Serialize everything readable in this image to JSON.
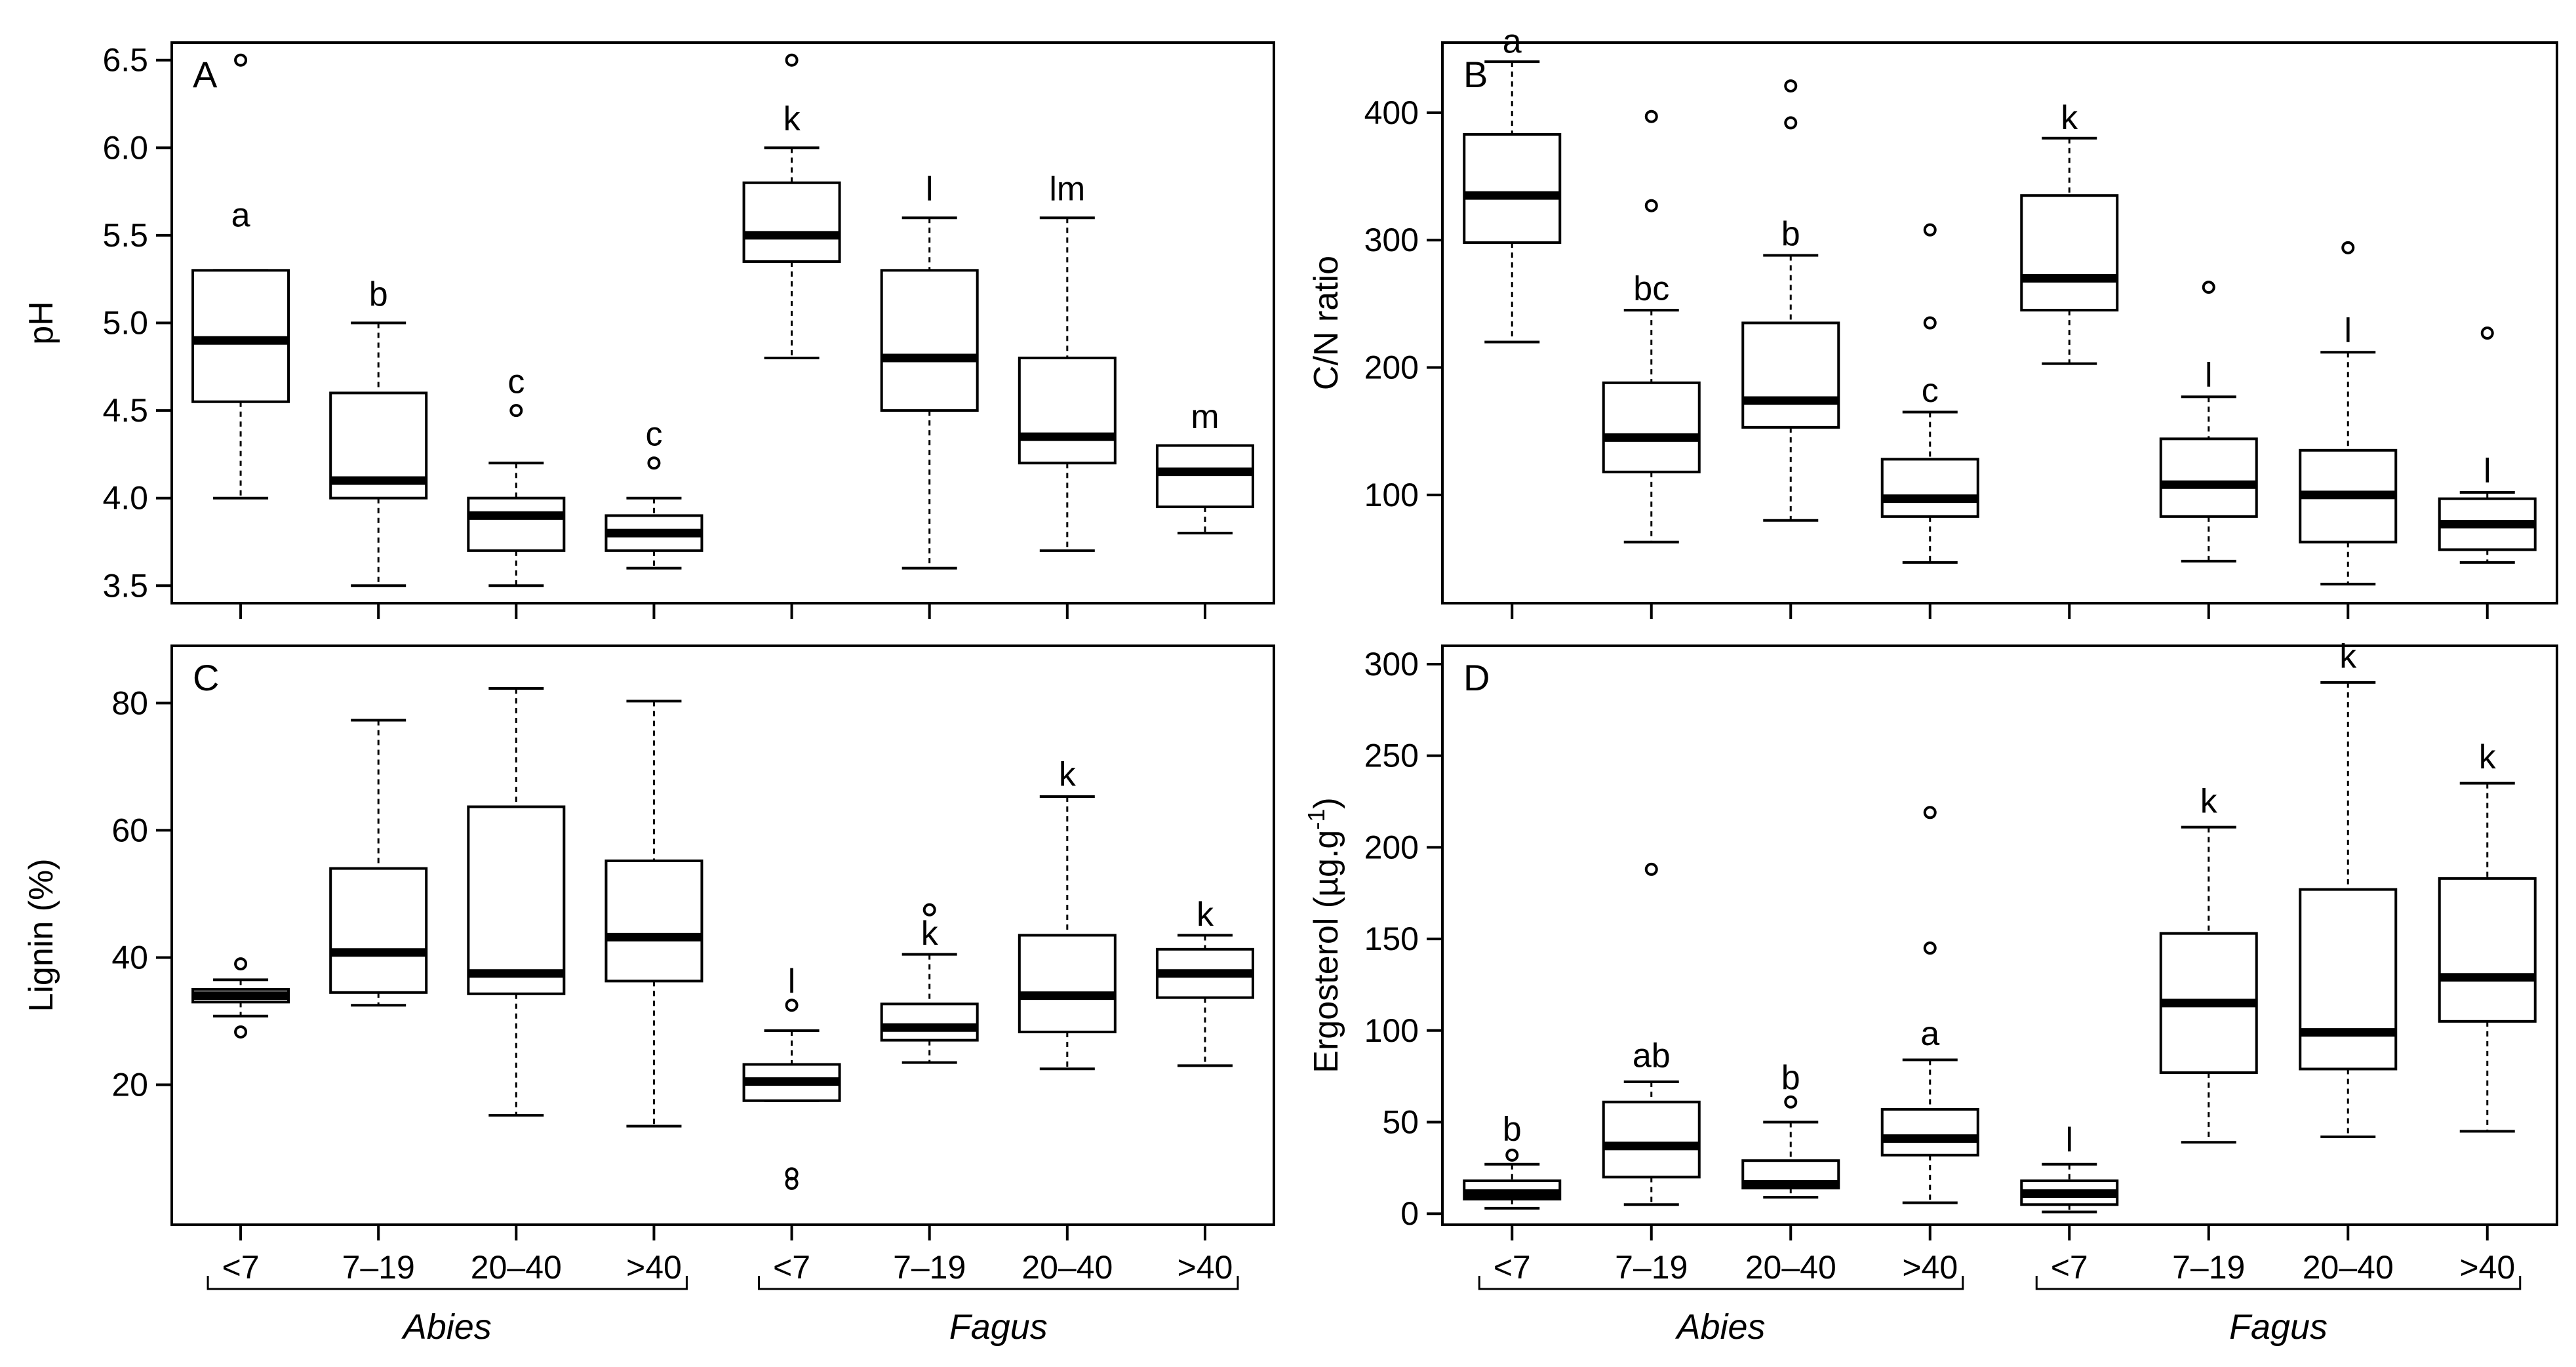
{
  "chart_data": [
    {
      "type": "boxplot",
      "panel": "A",
      "ylabel": "pH",
      "ylim": [
        3.4,
        6.6
      ],
      "yticks": [
        3.5,
        4.0,
        4.5,
        5.0,
        5.5,
        6.0,
        6.5
      ],
      "ytick_labels": [
        "3.5",
        "4.0",
        "4.5",
        "5.0",
        "5.5",
        "6.0",
        "6.5"
      ],
      "boxes": [
        {
          "category": "<7",
          "group": "Abies",
          "lw": 4.0,
          "q1": 4.55,
          "med": 4.9,
          "q3": 5.3,
          "uw": 5.3,
          "outliers": [
            6.5
          ],
          "letter": "a",
          "letter_y": 5.55
        },
        {
          "category": "7–19",
          "group": "Abies",
          "lw": 3.5,
          "q1": 4.0,
          "med": 4.1,
          "q3": 4.6,
          "uw": 5.0,
          "outliers": [],
          "letter": "b",
          "letter_y": 5.1
        },
        {
          "category": "20–40",
          "group": "Abies",
          "lw": 3.5,
          "q1": 3.7,
          "med": 3.9,
          "q3": 4.0,
          "uw": 4.2,
          "outliers": [
            4.5
          ],
          "letter": "c",
          "letter_y": 4.6
        },
        {
          "category": ">40",
          "group": "Abies",
          "lw": 3.6,
          "q1": 3.7,
          "med": 3.8,
          "q3": 3.9,
          "uw": 4.0,
          "outliers": [
            4.2
          ],
          "letter": "c",
          "letter_y": 4.3
        },
        {
          "category": "<7",
          "group": "Fagus",
          "lw": 4.8,
          "q1": 5.35,
          "med": 5.5,
          "q3": 5.8,
          "uw": 6.0,
          "outliers": [
            6.5
          ],
          "letter": "k",
          "letter_y": 6.1
        },
        {
          "category": "7–19",
          "group": "Fagus",
          "lw": 3.6,
          "q1": 4.5,
          "med": 4.8,
          "q3": 5.3,
          "uw": 5.6,
          "outliers": [],
          "letter": "l",
          "letter_y": 5.7
        },
        {
          "category": "20–40",
          "group": "Fagus",
          "lw": 3.7,
          "q1": 4.2,
          "med": 4.35,
          "q3": 4.8,
          "uw": 5.6,
          "outliers": [],
          "letter": "lm",
          "letter_y": 5.7
        },
        {
          "category": ">40",
          "group": "Fagus",
          "lw": 3.8,
          "q1": 3.95,
          "med": 4.15,
          "q3": 4.3,
          "uw": 4.3,
          "outliers": [],
          "letter": "m",
          "letter_y": 4.4
        }
      ]
    },
    {
      "type": "boxplot",
      "panel": "B",
      "ylabel": "C/N ratio",
      "ylim": [
        15,
        455
      ],
      "yticks": [
        100,
        200,
        300,
        400
      ],
      "ytick_labels": [
        "100",
        "200",
        "300",
        "400"
      ],
      "boxes": [
        {
          "category": "<7",
          "group": "Abies",
          "lw": 220,
          "q1": 298,
          "med": 335,
          "q3": 383,
          "uw": 440,
          "outliers": [],
          "letter": "a",
          "letter_y": 447
        },
        {
          "category": "7–19",
          "group": "Abies",
          "lw": 63,
          "q1": 118,
          "med": 145,
          "q3": 188,
          "uw": 245,
          "outliers": [
            327,
            397
          ],
          "letter": "bc",
          "letter_y": 253
        },
        {
          "category": "20–40",
          "group": "Abies",
          "lw": 80,
          "q1": 153,
          "med": 174,
          "q3": 235,
          "uw": 288,
          "outliers": [
            392,
            421
          ],
          "letter": "b",
          "letter_y": 296
        },
        {
          "category": ">40",
          "group": "Abies",
          "lw": 47,
          "q1": 83,
          "med": 97,
          "q3": 128,
          "uw": 165,
          "outliers": [
            235,
            308
          ],
          "letter": "c",
          "letter_y": 173
        },
        {
          "category": "<7",
          "group": "Fagus",
          "lw": 203,
          "q1": 245,
          "med": 270,
          "q3": 335,
          "uw": 380,
          "outliers": [],
          "letter": "k",
          "letter_y": 387
        },
        {
          "category": "7–19",
          "group": "Fagus",
          "lw": 48,
          "q1": 83,
          "med": 108,
          "q3": 144,
          "uw": 177,
          "outliers": [
            263
          ],
          "letter": "l",
          "letter_y": 185
        },
        {
          "category": "20–40",
          "group": "Fagus",
          "lw": 30,
          "q1": 63,
          "med": 100,
          "q3": 135,
          "uw": 212,
          "outliers": [
            294
          ],
          "letter": "l",
          "letter_y": 220
        },
        {
          "category": ">40",
          "group": "Fagus",
          "lw": 47,
          "q1": 57,
          "med": 77,
          "q3": 97,
          "uw": 102,
          "outliers": [
            227
          ],
          "letter": "l",
          "letter_y": 110
        }
      ]
    },
    {
      "type": "boxplot",
      "panel": "C",
      "ylabel": "Lignin (%)",
      "ylim": [
        -2,
        89
      ],
      "yticks": [
        20,
        40,
        60,
        80
      ],
      "ytick_labels": [
        "20",
        "40",
        "60",
        "80"
      ],
      "boxes": [
        {
          "category": "<7",
          "group": "Abies",
          "lw": 30.8,
          "q1": 33,
          "med": 34,
          "q3": 35,
          "uw": 36.5,
          "outliers": [
            28.3,
            39
          ],
          "letter": "",
          "letter_y": 0
        },
        {
          "category": "7–19",
          "group": "Abies",
          "lw": 32.5,
          "q1": 34.5,
          "med": 40.8,
          "q3": 54,
          "uw": 77.3,
          "outliers": [],
          "letter": "",
          "letter_y": 0
        },
        {
          "category": "20–40",
          "group": "Abies",
          "lw": 15.2,
          "q1": 34.3,
          "med": 37.5,
          "q3": 63.7,
          "uw": 82.3,
          "outliers": [],
          "letter": "",
          "letter_y": 0
        },
        {
          "category": ">40",
          "group": "Abies",
          "lw": 13.5,
          "q1": 36.3,
          "med": 43.2,
          "q3": 55.2,
          "uw": 80.3,
          "outliers": [],
          "letter": "",
          "letter_y": 0
        },
        {
          "category": "<7",
          "group": "Fagus",
          "lw": 17.5,
          "q1": 17.5,
          "med": 20.5,
          "q3": 23.2,
          "uw": 28.5,
          "outliers": [
            4.5,
            6,
            32.5
          ],
          "letter": "l",
          "letter_y": 34.5
        },
        {
          "category": "7–19",
          "group": "Fagus",
          "lw": 23.5,
          "q1": 27,
          "med": 29,
          "q3": 32.7,
          "uw": 40.5,
          "outliers": [
            47.5
          ],
          "letter": "k",
          "letter_y": 42
        },
        {
          "category": "20–40",
          "group": "Fagus",
          "lw": 22.5,
          "q1": 28.3,
          "med": 34,
          "q3": 43.5,
          "uw": 65.3,
          "outliers": [],
          "letter": "k",
          "letter_y": 67
        },
        {
          "category": ">40",
          "group": "Fagus",
          "lw": 23,
          "q1": 33.7,
          "med": 37.5,
          "q3": 41.3,
          "uw": 43.5,
          "outliers": [],
          "letter": "k",
          "letter_y": 45
        }
      ]
    },
    {
      "type": "boxplot",
      "panel": "D",
      "ylabel": "Ergosterol (µg.g",
      "ylabel_superscript": "-1",
      "ylabel_suffix": ")",
      "ylim": [
        -6,
        310
      ],
      "yticks": [
        0,
        50,
        100,
        150,
        200,
        250,
        300
      ],
      "ytick_labels": [
        "0",
        "50",
        "100",
        "150",
        "200",
        "250",
        "300"
      ],
      "boxes": [
        {
          "category": "<7",
          "group": "Abies",
          "lw": 3,
          "q1": 8,
          "med": 11,
          "q3": 18,
          "uw": 27,
          "outliers": [
            32
          ],
          "letter": "b",
          "letter_y": 40
        },
        {
          "category": "7–19",
          "group": "Abies",
          "lw": 5,
          "q1": 20,
          "med": 37,
          "q3": 61,
          "uw": 72,
          "outliers": [
            188
          ],
          "letter": "ab",
          "letter_y": 80
        },
        {
          "category": "20–40",
          "group": "Abies",
          "lw": 9,
          "q1": 14,
          "med": 16,
          "q3": 29,
          "uw": 50,
          "outliers": [
            61
          ],
          "letter": "b",
          "letter_y": 68
        },
        {
          "category": ">40",
          "group": "Abies",
          "lw": 6,
          "q1": 32,
          "med": 41,
          "q3": 57,
          "uw": 84,
          "outliers": [
            145,
            219
          ],
          "letter": "a",
          "letter_y": 92
        },
        {
          "category": "<7",
          "group": "Fagus",
          "lw": 1,
          "q1": 5,
          "med": 11,
          "q3": 18,
          "uw": 27,
          "outliers": [],
          "letter": "l",
          "letter_y": 34
        },
        {
          "category": "7–19",
          "group": "Fagus",
          "lw": 39,
          "q1": 77,
          "med": 115,
          "q3": 153,
          "uw": 211,
          "outliers": [],
          "letter": "k",
          "letter_y": 219
        },
        {
          "category": "20–40",
          "group": "Fagus",
          "lw": 42,
          "q1": 79,
          "med": 99,
          "q3": 177,
          "uw": 290,
          "outliers": [],
          "letter": "k",
          "letter_y": 298
        },
        {
          "category": ">40",
          "group": "Fagus",
          "lw": 45,
          "q1": 105,
          "med": 129,
          "q3": 183,
          "uw": 235,
          "outliers": [],
          "letter": "k",
          "letter_y": 243
        }
      ]
    }
  ],
  "x_categories": [
    "<7",
    "7–19",
    "20–40",
    ">40",
    "<7",
    "7–19",
    "20–40",
    ">40"
  ],
  "groups": [
    "Abies",
    "Fagus"
  ]
}
